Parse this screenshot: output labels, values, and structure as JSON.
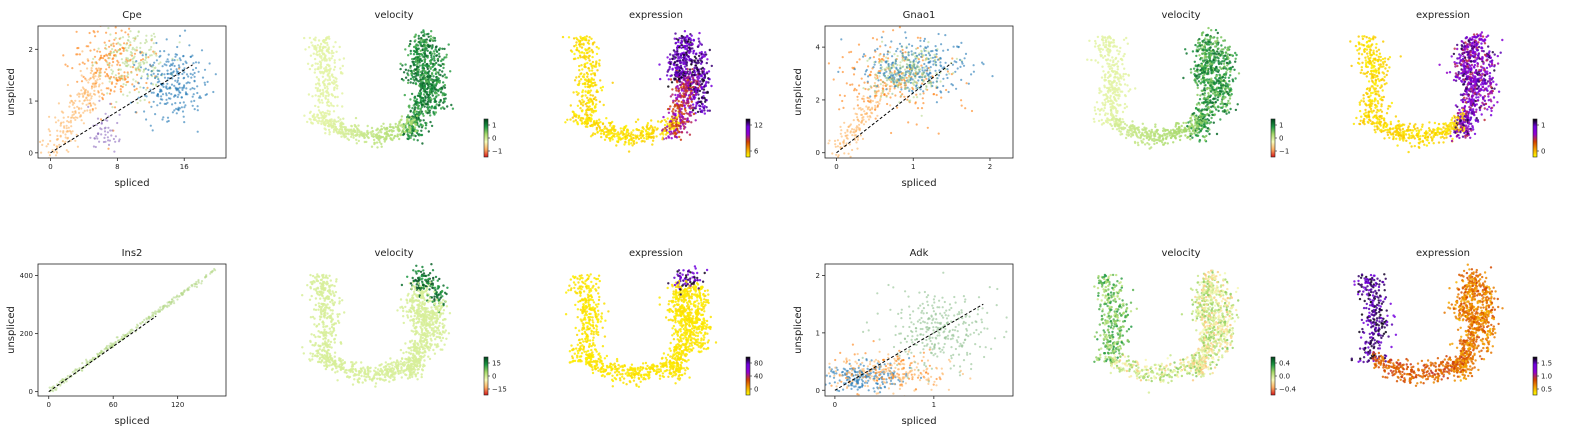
{
  "figure": {
    "colors": {
      "cluster_blue": "#1f77b4",
      "cluster_orange": "#ff7f0e",
      "cluster_lightgreen": "#b5d98a",
      "cluster_peach": "#fdb462",
      "cluster_purple": "#8e6cbe",
      "cluster_sage": "#8fbf8f",
      "fit_line": "#000000",
      "velocity_cmap": [
        "#d7191c",
        "#fdae61",
        "#f7fcb9",
        "#a6d96a",
        "#1a9641",
        "#00441b"
      ],
      "expression_cmap": [
        "#ffff00",
        "#f5a000",
        "#d04000",
        "#9000d0",
        "#7000e0",
        "#000000"
      ]
    }
  },
  "chart_data": [
    {
      "type": "scatter",
      "gene": "Cpe",
      "title": "Cpe",
      "xlabel": "spliced",
      "ylabel": "unspliced",
      "xlim": [
        -1.5,
        21
      ],
      "ylim": [
        -0.1,
        2.45
      ],
      "xticks": [
        0,
        8,
        16
      ],
      "yticks": [
        0,
        1,
        2
      ],
      "fit_line": {
        "x": [
          0,
          17
        ],
        "y": [
          0,
          1.7
        ]
      },
      "clusters": [
        {
          "color": "#fdb462",
          "center": [
            3,
            0.7
          ],
          "spread": [
            2.5,
            0.5
          ],
          "n": 220,
          "along_line": true
        },
        {
          "color": "#ff7f0e",
          "center": [
            7.5,
            1.7
          ],
          "spread": [
            2.5,
            0.4
          ],
          "n": 200
        },
        {
          "color": "#b5d98a",
          "center": [
            10,
            1.8
          ],
          "spread": [
            2,
            0.35
          ],
          "n": 180
        },
        {
          "color": "#1f77b4",
          "center": [
            14.5,
            1.35
          ],
          "spread": [
            2,
            0.35
          ],
          "n": 260
        },
        {
          "color": "#8e6cbe",
          "center": [
            6.5,
            0.4
          ],
          "spread": [
            1,
            0.2
          ],
          "n": 50
        }
      ]
    },
    {
      "type": "embedding",
      "title": "velocity",
      "cmap": "velocity",
      "pattern": "cpe_velocity",
      "colorbar": {
        "ticks": [
          1,
          0,
          -1
        ],
        "labels": [
          "1",
          "0",
          "−1"
        ]
      }
    },
    {
      "type": "embedding",
      "title": "expression",
      "cmap": "expression",
      "pattern": "cpe_expression",
      "colorbar": {
        "ticks": [
          12,
          6
        ],
        "labels": [
          "12",
          "6"
        ],
        "range": [
          0,
          15
        ]
      }
    },
    {
      "type": "scatter",
      "gene": "Gnao1",
      "title": "Gnao1",
      "xlabel": "spliced",
      "ylabel": "unspliced",
      "xlim": [
        -0.15,
        2.3
      ],
      "ylim": [
        -0.2,
        4.8
      ],
      "xticks": [
        0,
        1,
        2
      ],
      "yticks": [
        0,
        2,
        4
      ],
      "fit_line": {
        "x": [
          0,
          1.5
        ],
        "y": [
          0,
          3.4
        ]
      },
      "clusters": [
        {
          "color": "#fdb462",
          "center": [
            0.35,
            1.2
          ],
          "spread": [
            0.2,
            0.7
          ],
          "n": 160,
          "along_line": true
        },
        {
          "color": "#ff7f0e",
          "center": [
            0.75,
            2.8
          ],
          "spread": [
            0.35,
            0.7
          ],
          "n": 200
        },
        {
          "color": "#b5d98a",
          "center": [
            0.95,
            3.1
          ],
          "spread": [
            0.25,
            0.5
          ],
          "n": 180
        },
        {
          "color": "#1f77b4",
          "center": [
            1.05,
            3.2
          ],
          "spread": [
            0.35,
            0.5
          ],
          "n": 260
        },
        {
          "color": "#8fbf8f",
          "center": [
            0.9,
            3.0
          ],
          "spread": [
            0.2,
            0.4
          ],
          "n": 80
        }
      ]
    },
    {
      "type": "embedding",
      "title": "velocity",
      "cmap": "velocity",
      "pattern": "gnao1_velocity",
      "colorbar": {
        "ticks": [
          1,
          0,
          -1
        ],
        "labels": [
          "1",
          "0",
          "−1"
        ]
      }
    },
    {
      "type": "embedding",
      "title": "expression",
      "cmap": "expression",
      "pattern": "gnao1_expression",
      "colorbar": {
        "ticks": [
          1,
          0
        ],
        "labels": [
          "1",
          "0"
        ],
        "range": [
          0,
          1.5
        ]
      }
    },
    {
      "type": "scatter",
      "gene": "Ins2",
      "title": "Ins2",
      "xlabel": "spliced",
      "ylabel": "unspliced",
      "xlim": [
        -10,
        165
      ],
      "ylim": [
        -15,
        440
      ],
      "xticks": [
        0,
        60,
        120
      ],
      "yticks": [
        0,
        200,
        400
      ],
      "fit_line": {
        "x": [
          0,
          100
        ],
        "y": [
          0,
          260
        ]
      },
      "clusters": [
        {
          "color": "#b5d98a",
          "center": [
            75,
            195
          ],
          "spread": [
            40,
            5
          ],
          "n": 260,
          "diagonal": [
            0,
            0,
            155,
            420
          ]
        }
      ]
    },
    {
      "type": "embedding",
      "title": "velocity",
      "cmap": "velocity",
      "pattern": "ins2_velocity",
      "colorbar": {
        "ticks": [
          15,
          0,
          -15
        ],
        "labels": [
          "15",
          "0",
          "−15"
        ]
      }
    },
    {
      "type": "embedding",
      "title": "expression",
      "cmap": "expression",
      "pattern": "ins2_expression",
      "colorbar": {
        "ticks": [
          80,
          40,
          0
        ],
        "labels": [
          "80",
          "40",
          "0"
        ],
        "range": [
          0,
          100
        ]
      }
    },
    {
      "type": "scatter",
      "gene": "Adk",
      "title": "Adk",
      "xlabel": "spliced",
      "ylabel": "unspliced",
      "xlim": [
        -0.1,
        1.8
      ],
      "ylim": [
        -0.1,
        2.2
      ],
      "xticks": [
        0,
        1
      ],
      "yticks": [
        0,
        1,
        2
      ],
      "fit_line": {
        "x": [
          0,
          1.5
        ],
        "y": [
          0,
          1.5
        ]
      },
      "clusters": [
        {
          "color": "#1f77b4",
          "center": [
            0.3,
            0.25
          ],
          "spread": [
            0.18,
            0.12
          ],
          "n": 200
        },
        {
          "color": "#fdb462",
          "center": [
            0.45,
            0.3
          ],
          "spread": [
            0.3,
            0.15
          ],
          "n": 200
        },
        {
          "color": "#8fbf8f",
          "center": [
            1.05,
            1.05
          ],
          "spread": [
            0.28,
            0.35
          ],
          "n": 300
        },
        {
          "color": "#ff7f0e",
          "center": [
            0.5,
            0.35
          ],
          "spread": [
            0.3,
            0.2
          ],
          "n": 80
        }
      ]
    },
    {
      "type": "embedding",
      "title": "velocity",
      "cmap": "velocity",
      "pattern": "adk_velocity",
      "colorbar": {
        "ticks": [
          0.4,
          0.0,
          -0.4
        ],
        "labels": [
          "0.4",
          "0.0",
          "−0.4"
        ]
      }
    },
    {
      "type": "embedding",
      "title": "expression",
      "cmap": "expression",
      "pattern": "adk_expression",
      "colorbar": {
        "ticks": [
          1.5,
          1.0,
          0.5
        ],
        "labels": [
          "1.5",
          "1.0",
          "0.5"
        ],
        "range": [
          0.2,
          1.5
        ]
      }
    }
  ]
}
